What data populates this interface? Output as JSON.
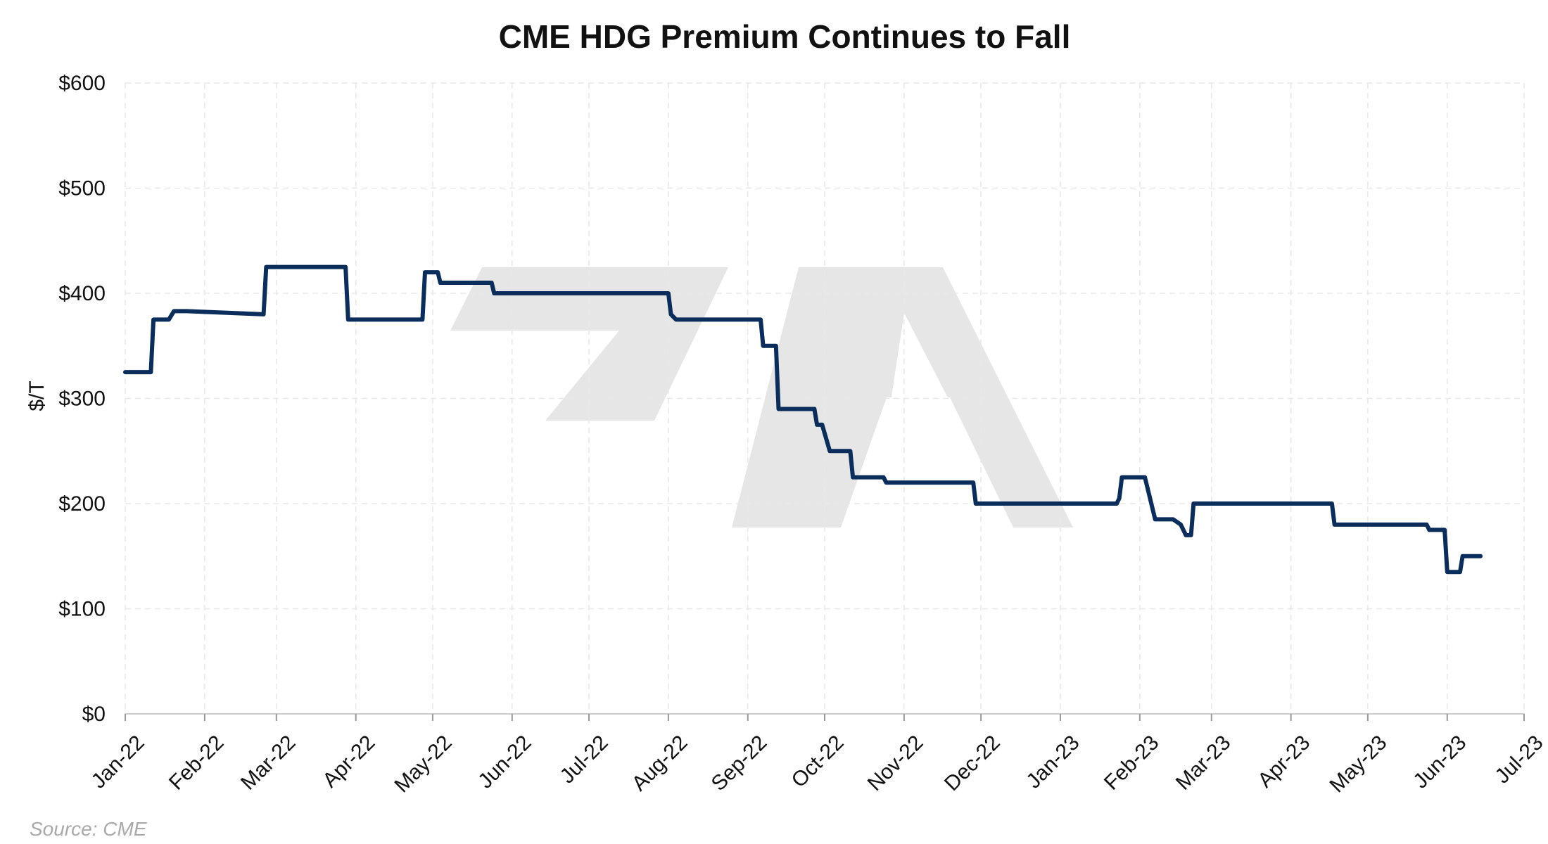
{
  "source": "Source: CME",
  "chart_data": {
    "type": "line",
    "title": "CME HDG Premium Continues to Fall",
    "ylabel": "$/T",
    "xlabel": "",
    "ylim": [
      0,
      600
    ],
    "y_ticks": [
      0,
      100,
      200,
      300,
      400,
      500,
      600
    ],
    "y_tick_labels": [
      "$0",
      "$100",
      "$200",
      "$300",
      "$400",
      "$500",
      "$600"
    ],
    "x_ticks": [
      "2022-01-01",
      "2022-02-01",
      "2022-03-01",
      "2022-04-01",
      "2022-05-01",
      "2022-06-01",
      "2022-07-01",
      "2022-08-01",
      "2022-09-01",
      "2022-10-01",
      "2022-11-01",
      "2022-12-01",
      "2023-01-01",
      "2023-02-01",
      "2023-03-01",
      "2023-04-01",
      "2023-05-01",
      "2023-06-01",
      "2023-07-01"
    ],
    "x_tick_labels": [
      "Jan-22",
      "Feb-22",
      "Mar-22",
      "Apr-22",
      "May-22",
      "Jun-22",
      "Jul-22",
      "Aug-22",
      "Sep-22",
      "Oct-22",
      "Nov-22",
      "Dec-22",
      "Jan-23",
      "Feb-23",
      "Mar-23",
      "Apr-23",
      "May-23",
      "Jun-23",
      "Jul-23"
    ],
    "xlim": [
      "2022-01-01",
      "2023-07-01"
    ],
    "grid": true,
    "line_color": "#0b2d5b",
    "watermark_color": "#e6e6e6",
    "series": [
      {
        "x": [
          "2022-01-01",
          "2022-01-11",
          "2022-01-12",
          "2022-01-18",
          "2022-01-20",
          "2022-01-25",
          "2022-02-24",
          "2022-02-25",
          "2022-03-28",
          "2022-03-29",
          "2022-04-27",
          "2022-04-28",
          "2022-05-03",
          "2022-05-04",
          "2022-05-24",
          "2022-05-25",
          "2022-08-01",
          "2022-08-02",
          "2022-08-04",
          "2022-09-06",
          "2022-09-07",
          "2022-09-12",
          "2022-09-13",
          "2022-09-27",
          "2022-09-28",
          "2022-09-30",
          "2022-10-03",
          "2022-10-11",
          "2022-10-12",
          "2022-10-24",
          "2022-10-25",
          "2022-11-28",
          "2022-11-29",
          "2023-01-23",
          "2023-01-24",
          "2023-01-25",
          "2023-02-03",
          "2023-02-07",
          "2023-02-14",
          "2023-02-17",
          "2023-02-19",
          "2023-02-21",
          "2023-02-22",
          "2023-04-17",
          "2023-04-18",
          "2023-05-24",
          "2023-05-25",
          "2023-05-31",
          "2023-06-01",
          "2023-06-06",
          "2023-06-07",
          "2023-06-14"
        ],
        "values": [
          325,
          325,
          375,
          375,
          383,
          383,
          380,
          425,
          425,
          375,
          375,
          420,
          420,
          410,
          410,
          400,
          400,
          380,
          375,
          375,
          350,
          350,
          290,
          290,
          275,
          275,
          250,
          250,
          225,
          225,
          220,
          220,
          200,
          200,
          205,
          225,
          225,
          185,
          185,
          180,
          170,
          170,
          200,
          200,
          180,
          180,
          175,
          175,
          135,
          135,
          150,
          150
        ]
      }
    ]
  }
}
